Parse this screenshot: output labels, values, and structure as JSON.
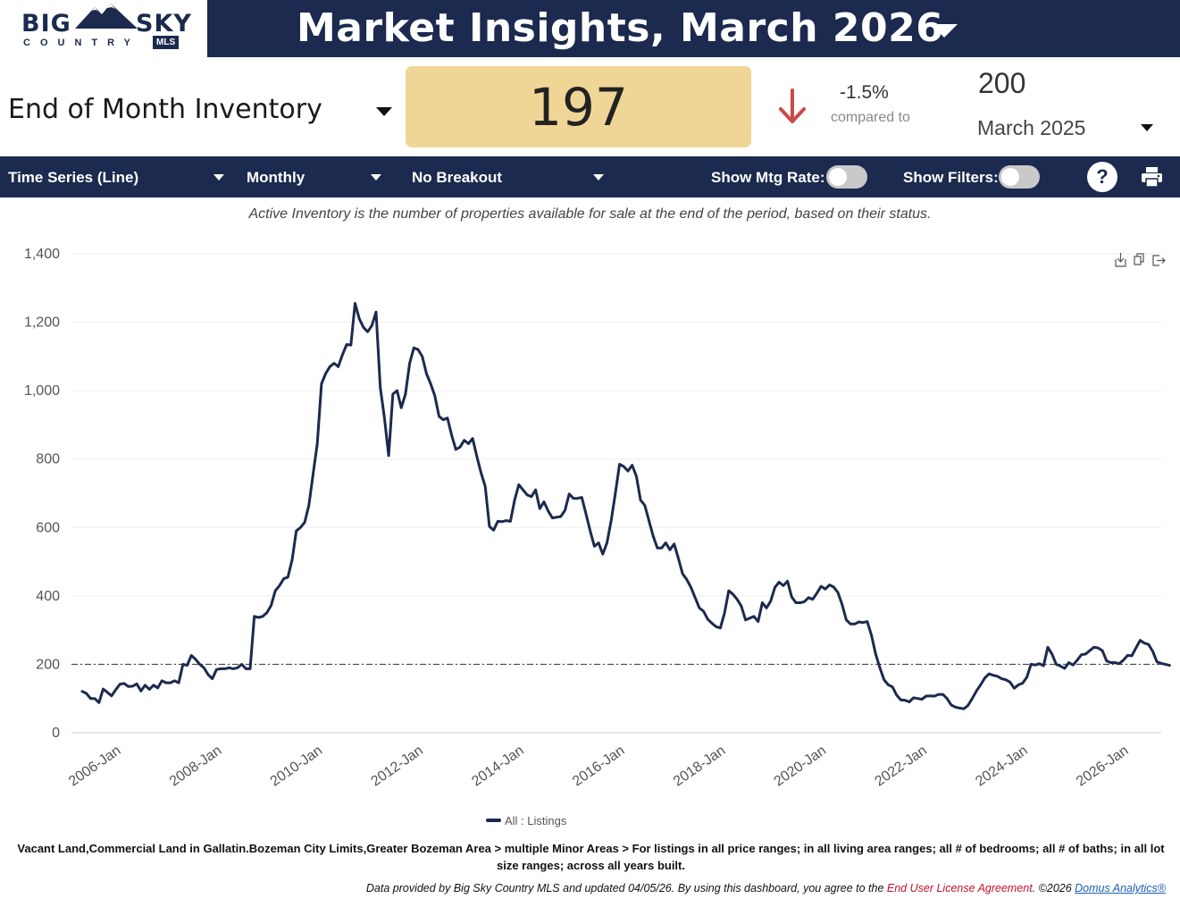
{
  "logo": {
    "big": "BIG",
    "sky": "SKY",
    "country": "COUNTRY",
    "mls": "MLS"
  },
  "header": {
    "title": "Market Insights, March 2026"
  },
  "metric": {
    "name": "End of Month Inventory",
    "value": "197",
    "change_pct": "-1.5%",
    "compared_label": "compared to",
    "compare_value": "200",
    "compare_period": "March 2025"
  },
  "controls": {
    "chart_type": "Time Series (Line)",
    "frequency": "Monthly",
    "breakout": "No Breakout",
    "mtg_rate_label": "Show Mtg Rate:",
    "filters_label": "Show Filters:",
    "help": "?"
  },
  "description": "Active Inventory is the number of properties available for sale at the end of the period, based on their status.",
  "chart_data": {
    "type": "line",
    "ylim": [
      0,
      1400
    ],
    "y_ticks": [
      "0",
      "200",
      "400",
      "600",
      "800",
      "1,000",
      "1,200",
      "1,400"
    ],
    "x_ticks": [
      "2006-Jan",
      "2008-Jan",
      "2010-Jan",
      "2012-Jan",
      "2014-Jan",
      "2016-Jan",
      "2018-Jan",
      "2020-Jan",
      "2022-Jan",
      "2024-Jan",
      "2026-Jan"
    ],
    "reference_line": 200,
    "grid": true,
    "legend_position": "bottom-center",
    "start_period": "2005-Jul",
    "series": [
      {
        "name": "All : Listings",
        "color": "#1b2a4e",
        "values": [
          121,
          115,
          100,
          100,
          88,
          128,
          118,
          108,
          126,
          142,
          144,
          135,
          136,
          143,
          122,
          139,
          127,
          139,
          131,
          152,
          146,
          146,
          152,
          146,
          200,
          197,
          226,
          215,
          200,
          190,
          170,
          158,
          185,
          187,
          187,
          190,
          187,
          190,
          200,
          187,
          187,
          340,
          337,
          340,
          351,
          372,
          415,
          430,
          450,
          455,
          505,
          590,
          600,
          615,
          665,
          756,
          845,
          1020,
          1050,
          1070,
          1080,
          1070,
          1105,
          1135,
          1133,
          1255,
          1210,
          1185,
          1172,
          1190,
          1230,
          1010,
          920,
          810,
          990,
          1000,
          950,
          990,
          1080,
          1125,
          1120,
          1100,
          1050,
          1020,
          985,
          925,
          915,
          920,
          870,
          828,
          835,
          855,
          845,
          860,
          808,
          760,
          720,
          603,
          592,
          618,
          617,
          620,
          618,
          680,
          725,
          710,
          695,
          690,
          710,
          655,
          675,
          648,
          628,
          630,
          632,
          650,
          698,
          685,
          685,
          688,
          640,
          590,
          545,
          555,
          522,
          555,
          620,
          700,
          785,
          778,
          765,
          782,
          750,
          680,
          665,
          620,
          575,
          540,
          540,
          555,
          535,
          552,
          510,
          465,
          448,
          425,
          395,
          365,
          355,
          332,
          320,
          310,
          306,
          350,
          415,
          405,
          390,
          370,
          330,
          335,
          340,
          325,
          380,
          365,
          385,
          425,
          440,
          430,
          443,
          397,
          380,
          380,
          383,
          395,
          390,
          408,
          428,
          420,
          432,
          426,
          410,
          375,
          330,
          318,
          318,
          324,
          322,
          325,
          285,
          230,
          190,
          155,
          140,
          134,
          110,
          96,
          95,
          90,
          102,
          100,
          98,
          107,
          108,
          107,
          112,
          112,
          100,
          81,
          75,
          72,
          70,
          80,
          100,
          122,
          140,
          160,
          172,
          168,
          165,
          158,
          155,
          148,
          130,
          140,
          145,
          162,
          200,
          198,
          202,
          196,
          250,
          230,
          200,
          195,
          188,
          205,
          198,
          212,
          228,
          230,
          240,
          250,
          248,
          240,
          210,
          205,
          205,
          202,
          212,
          226,
          225,
          248,
          270,
          262,
          258,
          238,
          207,
          203,
          200,
          197
        ]
      }
    ]
  },
  "footer": {
    "filters_line1": "Vacant Land,Commercial Land in Gallatin.Bozeman City Limits,Greater Bozeman Area > multiple Minor Areas > For listings in all price ranges; in all living area ranges; all # of bedrooms; all # of baths; in all lot",
    "filters_line2": "size ranges; across all years built.",
    "credits_prefix": "Data provided by Big Sky Country MLS and updated 04/05/26.  By using this dashboard, you agree to the ",
    "eula": "End User License Agreement",
    "copyright": ".  ©2026 ",
    "vendor": "Domus Analytics®"
  }
}
